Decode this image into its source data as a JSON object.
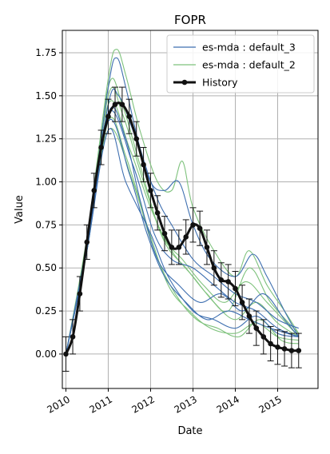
{
  "chart_data": {
    "type": "line",
    "title": "FOPR",
    "xlabel": "Date",
    "ylabel": "Value",
    "xlim": [
      "2009-12-01",
      "2015-12-15"
    ],
    "ylim": [
      -0.2,
      1.88
    ],
    "grid": true,
    "legend_position": "top-right",
    "x_ticks": [
      {
        "date": "2010-01-01",
        "label": "2010"
      },
      {
        "date": "2011-01-01",
        "label": "2011"
      },
      {
        "date": "2012-01-01",
        "label": "2012"
      },
      {
        "date": "2013-01-01",
        "label": "2013"
      },
      {
        "date": "2014-01-01",
        "label": "2014"
      },
      {
        "date": "2015-01-01",
        "label": "2015"
      }
    ],
    "y_ticks": [
      {
        "value": 0.0,
        "label": "0.00"
      },
      {
        "value": 0.25,
        "label": "0.25"
      },
      {
        "value": 0.5,
        "label": "0.50"
      },
      {
        "value": 0.75,
        "label": "0.75"
      },
      {
        "value": 1.0,
        "label": "1.00"
      },
      {
        "value": 1.25,
        "label": "1.25"
      },
      {
        "value": 1.5,
        "label": "1.50"
      },
      {
        "value": 1.75,
        "label": "1.75"
      }
    ],
    "legend": [
      {
        "label": "es-mda : default_3",
        "color": "#3e6fb0",
        "style": "line"
      },
      {
        "label": "es-mda : default_2",
        "color": "#7ec27c",
        "style": "line"
      },
      {
        "label": "History",
        "color": "#111111",
        "style": "line-marker"
      }
    ],
    "series": [
      {
        "name": "es-mda : default_3",
        "color": "#3e6fb0",
        "realizations": [
          [
            [
              "2010-01-01",
              0.0
            ],
            [
              "2010-07-01",
              0.65
            ],
            [
              "2011-01-01",
              1.55
            ],
            [
              "2011-03-15",
              1.72
            ],
            [
              "2011-06-01",
              1.55
            ],
            [
              "2011-10-01",
              1.2
            ],
            [
              "2012-03-01",
              0.9
            ],
            [
              "2012-07-01",
              0.75
            ],
            [
              "2013-01-01",
              0.55
            ],
            [
              "2013-07-01",
              0.45
            ],
            [
              "2014-01-01",
              0.35
            ],
            [
              "2014-07-01",
              0.3
            ],
            [
              "2015-01-01",
              0.2
            ],
            [
              "2015-07-01",
              0.15
            ]
          ],
          [
            [
              "2010-01-01",
              0.0
            ],
            [
              "2010-07-01",
              0.62
            ],
            [
              "2011-01-01",
              1.45
            ],
            [
              "2011-04-01",
              1.5
            ],
            [
              "2011-08-01",
              1.3
            ],
            [
              "2012-01-01",
              1.0
            ],
            [
              "2012-05-01",
              0.95
            ],
            [
              "2012-09-01",
              1.0
            ],
            [
              "2013-01-01",
              0.75
            ],
            [
              "2013-06-01",
              0.55
            ],
            [
              "2014-01-01",
              0.45
            ],
            [
              "2014-06-01",
              0.58
            ],
            [
              "2014-10-01",
              0.45
            ],
            [
              "2015-03-01",
              0.25
            ],
            [
              "2015-07-01",
              0.1
            ]
          ],
          [
            [
              "2010-01-01",
              0.0
            ],
            [
              "2010-07-01",
              0.6
            ],
            [
              "2011-01-01",
              1.4
            ],
            [
              "2011-06-01",
              1.25
            ],
            [
              "2011-10-01",
              0.9
            ],
            [
              "2012-03-01",
              0.55
            ],
            [
              "2012-09-01",
              0.4
            ],
            [
              "2013-03-01",
              0.3
            ],
            [
              "2013-09-01",
              0.35
            ],
            [
              "2014-03-01",
              0.25
            ],
            [
              "2014-09-01",
              0.35
            ],
            [
              "2015-03-01",
              0.2
            ],
            [
              "2015-07-01",
              0.1
            ]
          ],
          [
            [
              "2010-01-01",
              0.0
            ],
            [
              "2010-07-01",
              0.6
            ],
            [
              "2011-01-01",
              1.35
            ],
            [
              "2011-07-01",
              1.05
            ],
            [
              "2011-12-01",
              0.7
            ],
            [
              "2012-05-01",
              0.45
            ],
            [
              "2012-11-01",
              0.3
            ],
            [
              "2013-05-01",
              0.2
            ],
            [
              "2013-11-01",
              0.25
            ],
            [
              "2014-05-01",
              0.2
            ],
            [
              "2014-11-01",
              0.15
            ],
            [
              "2015-07-01",
              0.1
            ]
          ],
          [
            [
              "2010-01-01",
              0.0
            ],
            [
              "2010-07-01",
              0.62
            ],
            [
              "2011-01-01",
              1.4
            ],
            [
              "2011-08-01",
              1.1
            ],
            [
              "2012-02-01",
              0.7
            ],
            [
              "2012-07-01",
              0.55
            ],
            [
              "2013-01-01",
              0.5
            ],
            [
              "2013-07-01",
              0.4
            ],
            [
              "2014-01-01",
              0.3
            ],
            [
              "2014-07-01",
              0.25
            ],
            [
              "2015-01-01",
              0.15
            ],
            [
              "2015-07-01",
              0.1
            ]
          ],
          [
            [
              "2010-01-01",
              0.0
            ],
            [
              "2010-07-01",
              0.6
            ],
            [
              "2011-01-01",
              1.3
            ],
            [
              "2011-06-01",
              1.0
            ],
            [
              "2012-01-01",
              0.7
            ],
            [
              "2012-06-01",
              0.45
            ],
            [
              "2013-01-01",
              0.25
            ],
            [
              "2013-07-01",
              0.2
            ],
            [
              "2014-01-01",
              0.15
            ],
            [
              "2014-07-01",
              0.22
            ],
            [
              "2015-01-01",
              0.12
            ],
            [
              "2015-07-01",
              0.1
            ]
          ]
        ]
      },
      {
        "name": "es-mda : default_2",
        "color": "#7ec27c",
        "realizations": [
          [
            [
              "2010-01-01",
              0.0
            ],
            [
              "2010-07-01",
              0.68
            ],
            [
              "2011-01-01",
              1.6
            ],
            [
              "2011-03-15",
              1.77
            ],
            [
              "2011-06-01",
              1.62
            ],
            [
              "2011-10-01",
              1.3
            ],
            [
              "2012-03-01",
              1.0
            ],
            [
              "2012-07-01",
              0.95
            ],
            [
              "2012-10-01",
              1.12
            ],
            [
              "2013-01-01",
              0.85
            ],
            [
              "2013-07-01",
              0.6
            ],
            [
              "2014-01-01",
              0.45
            ],
            [
              "2014-05-01",
              0.6
            ],
            [
              "2014-10-01",
              0.4
            ],
            [
              "2015-03-01",
              0.25
            ],
            [
              "2015-07-01",
              0.12
            ]
          ],
          [
            [
              "2010-01-01",
              0.0
            ],
            [
              "2010-07-01",
              0.65
            ],
            [
              "2011-01-01",
              1.55
            ],
            [
              "2011-05-01",
              1.45
            ],
            [
              "2011-10-01",
              1.1
            ],
            [
              "2012-04-01",
              0.7
            ],
            [
              "2012-10-01",
              0.55
            ],
            [
              "2013-04-01",
              0.4
            ],
            [
              "2013-10-01",
              0.3
            ],
            [
              "2014-04-01",
              0.42
            ],
            [
              "2014-10-01",
              0.3
            ],
            [
              "2015-07-01",
              0.1
            ]
          ],
          [
            [
              "2010-01-01",
              0.0
            ],
            [
              "2010-07-01",
              0.6
            ],
            [
              "2011-01-01",
              1.35
            ],
            [
              "2011-06-01",
              1.15
            ],
            [
              "2011-12-01",
              0.75
            ],
            [
              "2012-06-01",
              0.4
            ],
            [
              "2012-12-01",
              0.25
            ],
            [
              "2013-06-01",
              0.15
            ],
            [
              "2014-01-01",
              0.12
            ],
            [
              "2014-07-01",
              0.18
            ],
            [
              "2015-01-01",
              0.1
            ],
            [
              "2015-07-01",
              0.08
            ]
          ],
          [
            [
              "2010-01-01",
              0.0
            ],
            [
              "2010-07-01",
              0.62
            ],
            [
              "2011-01-01",
              1.45
            ],
            [
              "2011-07-01",
              1.2
            ],
            [
              "2012-01-01",
              0.85
            ],
            [
              "2012-07-01",
              0.6
            ],
            [
              "2013-01-01",
              0.45
            ],
            [
              "2013-07-01",
              0.3
            ],
            [
              "2014-01-01",
              0.2
            ],
            [
              "2014-07-01",
              0.3
            ],
            [
              "2015-01-01",
              0.18
            ],
            [
              "2015-07-01",
              0.1
            ]
          ],
          [
            [
              "2010-01-01",
              0.0
            ],
            [
              "2010-07-01",
              0.6
            ],
            [
              "2011-01-01",
              1.3
            ],
            [
              "2011-08-01",
              1.0
            ],
            [
              "2012-02-01",
              0.6
            ],
            [
              "2012-08-01",
              0.35
            ],
            [
              "2013-02-01",
              0.2
            ],
            [
              "2013-08-01",
              0.15
            ],
            [
              "2014-02-01",
              0.1
            ],
            [
              "2014-08-01",
              0.2
            ],
            [
              "2015-02-01",
              0.08
            ],
            [
              "2015-07-01",
              0.06
            ]
          ],
          [
            [
              "2010-01-01",
              0.0
            ],
            [
              "2010-07-01",
              0.64
            ],
            [
              "2011-01-01",
              1.5
            ],
            [
              "2011-05-01",
              1.4
            ],
            [
              "2011-11-01",
              1.0
            ],
            [
              "2012-05-01",
              0.65
            ],
            [
              "2012-11-01",
              0.5
            ],
            [
              "2013-05-01",
              0.35
            ],
            [
              "2013-11-01",
              0.25
            ],
            [
              "2014-05-01",
              0.5
            ],
            [
              "2014-11-01",
              0.3
            ],
            [
              "2015-07-01",
              0.12
            ]
          ]
        ]
      },
      {
        "name": "History",
        "color": "#111111",
        "error": 0.1,
        "points": [
          [
            "2010-01-01",
            0.0
          ],
          [
            "2010-03-01",
            0.1
          ],
          [
            "2010-05-01",
            0.35
          ],
          [
            "2010-07-01",
            0.65
          ],
          [
            "2010-09-01",
            0.95
          ],
          [
            "2010-11-01",
            1.2
          ],
          [
            "2011-01-01",
            1.38
          ],
          [
            "2011-03-01",
            1.45
          ],
          [
            "2011-05-01",
            1.45
          ],
          [
            "2011-07-01",
            1.38
          ],
          [
            "2011-09-01",
            1.25
          ],
          [
            "2011-11-01",
            1.1
          ],
          [
            "2012-01-01",
            0.95
          ],
          [
            "2012-03-01",
            0.82
          ],
          [
            "2012-05-01",
            0.7
          ],
          [
            "2012-07-01",
            0.62
          ],
          [
            "2012-09-01",
            0.62
          ],
          [
            "2012-11-01",
            0.68
          ],
          [
            "2013-01-01",
            0.75
          ],
          [
            "2013-03-01",
            0.73
          ],
          [
            "2013-05-01",
            0.62
          ],
          [
            "2013-07-01",
            0.5
          ],
          [
            "2013-09-01",
            0.43
          ],
          [
            "2013-11-01",
            0.42
          ],
          [
            "2014-01-01",
            0.38
          ],
          [
            "2014-03-01",
            0.3
          ],
          [
            "2014-05-01",
            0.22
          ],
          [
            "2014-07-01",
            0.15
          ],
          [
            "2014-09-01",
            0.1
          ],
          [
            "2014-11-01",
            0.06
          ],
          [
            "2015-01-01",
            0.04
          ],
          [
            "2015-03-01",
            0.03
          ],
          [
            "2015-05-01",
            0.02
          ],
          [
            "2015-07-01",
            0.02
          ]
        ]
      }
    ]
  }
}
